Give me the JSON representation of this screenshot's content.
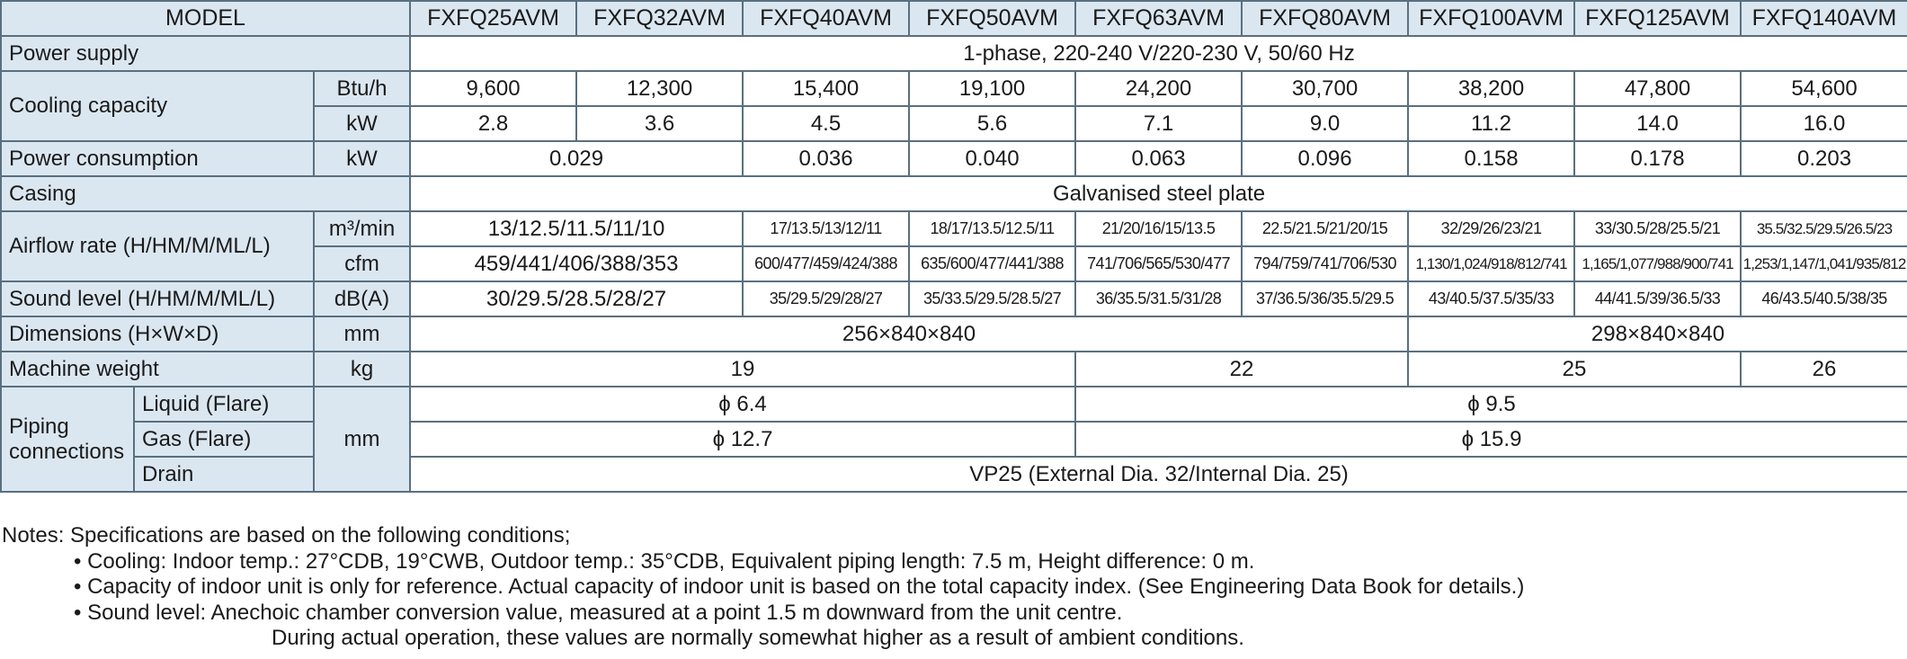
{
  "header": {
    "model_label": "MODEL",
    "models": [
      "FXFQ25AVM",
      "FXFQ32AVM",
      "FXFQ40AVM",
      "FXFQ50AVM",
      "FXFQ63AVM",
      "FXFQ80AVM",
      "FXFQ100AVM",
      "FXFQ125AVM",
      "FXFQ140AVM"
    ]
  },
  "rows": {
    "power_supply": {
      "label": "Power supply",
      "value": "1-phase, 220-240 V/220-230 V, 50/60 Hz"
    },
    "cooling_capacity": {
      "label": "Cooling capacity",
      "unit_btu": "Btu/h",
      "btu": [
        "9,600",
        "12,300",
        "15,400",
        "19,100",
        "24,200",
        "30,700",
        "38,200",
        "47,800",
        "54,600"
      ],
      "unit_kw": "kW",
      "kw": [
        "2.8",
        "3.6",
        "4.5",
        "5.6",
        "7.1",
        "9.0",
        "11.2",
        "14.0",
        "16.0"
      ]
    },
    "power_consumption": {
      "label": "Power consumption",
      "unit": "kW",
      "values": [
        "0.029",
        "0.036",
        "0.040",
        "0.063",
        "0.096",
        "0.158",
        "0.178",
        "0.203"
      ]
    },
    "casing": {
      "label": "Casing",
      "value": "Galvanised steel plate"
    },
    "airflow": {
      "label": "Airflow rate (H/HM/M/ML/L)",
      "unit_m3": "m³/min",
      "m3": [
        "13/12.5/11.5/11/10",
        "17/13.5/13/12/11",
        "18/17/13.5/12.5/11",
        "21/20/16/15/13.5",
        "22.5/21.5/21/20/15",
        "32/29/26/23/21",
        "33/30.5/28/25.5/21",
        "35.5/32.5/29.5/26.5/23"
      ],
      "unit_cfm": "cfm",
      "cfm": [
        "459/441/406/388/353",
        "600/477/459/424/388",
        "635/600/477/441/388",
        "741/706/565/530/477",
        "794/759/741/706/530",
        "1,130/1,024/918/812/741",
        "1,165/1,077/988/900/741",
        "1,253/1,147/1,041/935/812"
      ]
    },
    "sound": {
      "label": "Sound level (H/HM/M/ML/L)",
      "unit": "dB(A)",
      "values": [
        "30/29.5/28.5/28/27",
        "35/29.5/29/28/27",
        "35/33.5/29.5/28.5/27",
        "36/35.5/31.5/31/28",
        "37/36.5/36/35.5/29.5",
        "43/40.5/37.5/35/33",
        "44/41.5/39/36.5/33",
        "46/43.5/40.5/38/35"
      ]
    },
    "dimensions": {
      "label": "Dimensions (H×W×D)",
      "unit": "mm",
      "values": [
        "256×840×840",
        "298×840×840"
      ]
    },
    "weight": {
      "label": "Machine weight",
      "unit": "kg",
      "values": [
        "19",
        "22",
        "25",
        "26"
      ]
    },
    "piping": {
      "label": "Piping connections",
      "unit": "mm",
      "liquid_label": "Liquid (Flare)",
      "liquid": [
        "ϕ 6.4",
        "ϕ 9.5"
      ],
      "gas_label": "Gas (Flare)",
      "gas": [
        "ϕ 12.7",
        "ϕ 15.9"
      ],
      "drain_label": "Drain",
      "drain": "VP25 (External Dia. 32/Internal Dia. 25)"
    }
  },
  "notes": {
    "intro": "Notes: Specifications are based on the following conditions;",
    "cooling": "• Cooling: Indoor temp.: 27°CDB, 19°CWB, Outdoor temp.: 35°CDB, Equivalent piping length: 7.5 m, Height difference: 0 m.",
    "capacity": "• Capacity of indoor unit is only for reference. Actual capacity of indoor unit is based on the total capacity index. (See Engineering Data Book for details.)",
    "sound_1": "• Sound level: Anechoic chamber conversion value, measured at a point 1.5 m downward from the unit centre.",
    "sound_2": "During actual operation, these values are normally somewhat higher as a result of ambient conditions."
  }
}
